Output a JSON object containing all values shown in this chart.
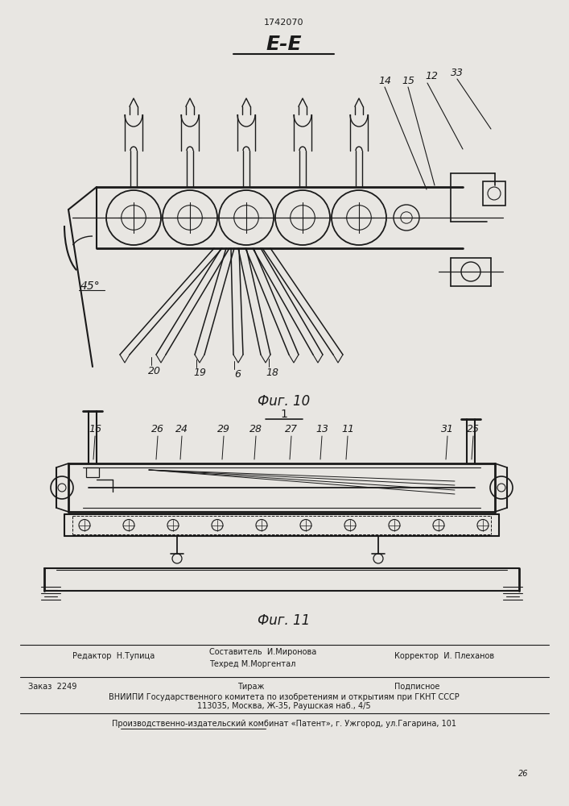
{
  "patent_number": "1742070",
  "ee_label": "Е-Е",
  "fig10_caption": "Фuг. 10",
  "fig11_caption": "Фuг. 11",
  "angle_label": "45°",
  "bg_color": "#e8e6e2",
  "line_color": "#1a1a1a",
  "bottom": {
    "editor": "Редактор  Н.Тупица",
    "compiler": "Составитель  И.Миронова",
    "techred": "Техред М.Моргентал",
    "corrector": "Корректор  И. Плеханов",
    "order": "Заказ  2249",
    "tirazh": "Тираж",
    "podpisnoe": "Подписное",
    "vniipи": "ВНИИПИ Государственного комитета по изобретениям и открытиям при ГКНТ СССР",
    "address": "113035, Москва, Ж-35, Раушская наб., 4/5",
    "publisher": "Производственно-издательский комбинат «Патент», г. Ужгород, ул.Гагарина, 101",
    "pagenum": "26"
  }
}
